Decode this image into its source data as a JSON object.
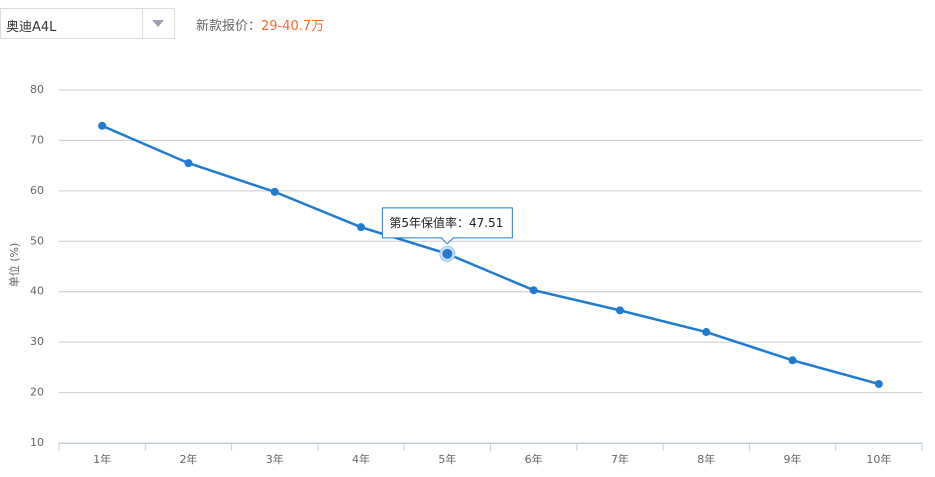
{
  "header": {
    "selected": "奥迪A4L",
    "price_label": "新款报价：",
    "price": "29-40.7万"
  },
  "chart_data": {
    "type": "line",
    "ylabel": "单位 (%)",
    "tooltip": "第5年保值率：",
    "categories": [
      "1年",
      "2年",
      "3年",
      "4年",
      "5年",
      "6年",
      "7年",
      "8年",
      "9年",
      "10年"
    ],
    "series": [
      {
        "name": "保值率",
        "color": "#1f7bd1",
        "values": [
          72.9,
          65.5,
          59.8,
          52.8,
          47.51,
          40.3,
          36.3,
          32.0,
          26.4,
          21.7
        ]
      }
    ],
    "ylim": [
      10,
      80
    ],
    "yticks": [
      10,
      20,
      30,
      40,
      50,
      60,
      70,
      80
    ],
    "grid": true
  }
}
